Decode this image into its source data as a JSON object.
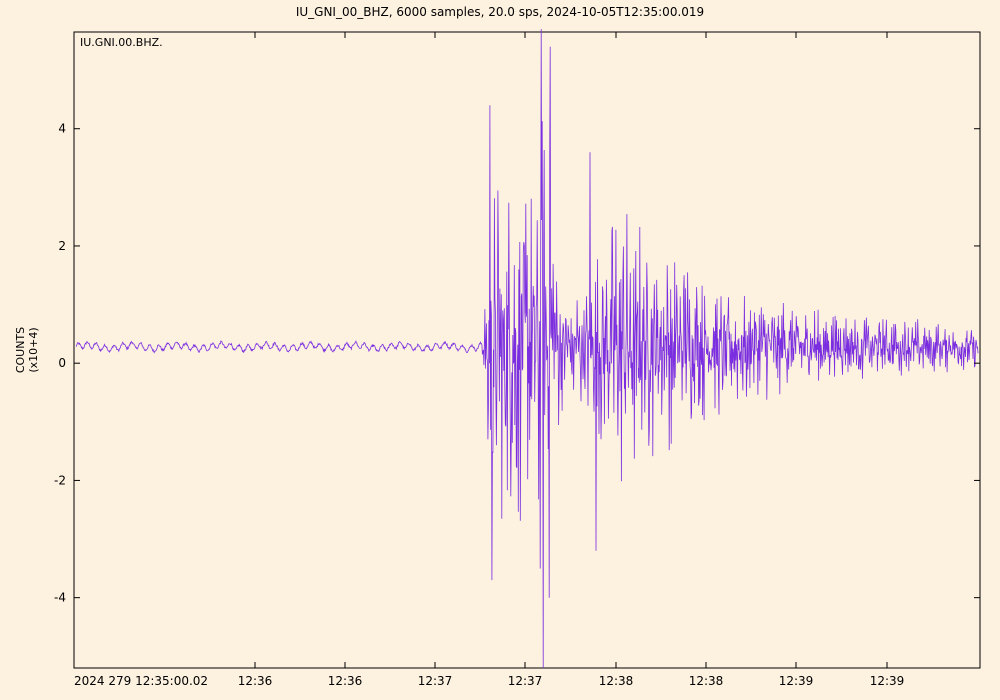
{
  "chart_data": {
    "type": "line",
    "title": "IU_GNI_00_BHZ, 6000 samples, 20.0 sps, 2024-10-05T12:35:00.019",
    "trace_label": "IU.GNI.00.BHZ.",
    "ylabel": "COUNTS",
    "yscale_label": "(x10+4)",
    "ylim": [
      -5.2,
      5.65
    ],
    "y_ticks": [
      -4,
      -2,
      0,
      2,
      4
    ],
    "y_tick_labels": [
      "-4",
      "-2",
      "0",
      "2",
      "4"
    ],
    "x_tick_labels": [
      "2024 279 12:35:00.02",
      "12:36",
      "12:36",
      "12:37",
      "12:37",
      "12:38",
      "12:38",
      "12:39",
      "12:39"
    ],
    "grid": false,
    "series": [
      {
        "color": "#7a2ee0",
        "x_start_index": 0,
        "x_step": 50,
        "n_samples": 6000,
        "values": [
          0.3,
          0.26,
          0.33,
          0.27,
          0.29,
          0.31,
          0.25,
          0.3,
          0.28,
          0.32,
          0.27,
          0.3,
          0.26,
          0.31,
          0.29,
          0.28,
          0.33,
          0.27,
          0.3,
          0.29,
          0.26,
          0.31,
          0.28,
          0.3,
          0.27,
          0.32,
          0.29,
          0.26,
          0.31,
          0.3,
          0.28,
          0.27,
          0.33,
          0.29,
          0.26,
          0.3,
          0.28,
          0.31,
          0.27,
          0.3,
          0.29,
          0.26,
          0.32,
          0.28,
          0.3,
          0.27,
          0.31,
          0.29,
          0.28,
          0.3,
          0.27,
          0.32,
          0.29,
          0.26,
          0.3,
          0.28,
          0.31,
          0.27,
          0.3,
          0.29,
          0.26,
          0.31,
          0.28,
          0.3,
          0.27,
          0.32,
          0.29,
          0.28,
          0.31,
          0.3,
          0.27,
          0.29,
          0.32,
          0.28,
          0.3,
          0.27,
          0.31,
          0.29,
          0.26,
          0.3,
          0.28,
          0.31,
          0.27,
          0.3,
          0.29,
          0.28,
          0.32,
          0.27,
          0.3,
          0.29,
          0.27,
          0.31,
          0.28,
          0.3,
          0.29,
          0.32,
          0.28,
          0.27,
          0.31,
          0.3,
          0.28,
          0.29,
          0.33,
          0.27,
          0.3,
          0.28,
          0.31,
          0.29,
          0.26,
          0.3,
          0.28,
          0.31,
          0.27,
          0.3,
          0.29,
          0.28,
          0.32,
          0.27,
          0.3,
          0.29,
          0.3,
          0.29
        ]
      }
    ],
    "annotations": []
  }
}
